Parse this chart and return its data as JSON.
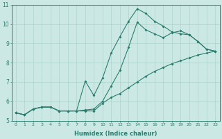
{
  "xlabel": "Humidex (Indice chaleur)",
  "ylabel": "",
  "xlim": [
    -0.5,
    23.5
  ],
  "ylim": [
    5,
    11
  ],
  "xticks": [
    0,
    1,
    2,
    3,
    4,
    5,
    6,
    7,
    8,
    9,
    10,
    11,
    12,
    13,
    14,
    15,
    16,
    17,
    18,
    19,
    20,
    21,
    22,
    23
  ],
  "yticks": [
    5,
    6,
    7,
    8,
    9,
    10,
    11
  ],
  "bg_color": "#cce8e4",
  "line_color": "#2a7d6e",
  "grid_color": "#aad4cc",
  "series": [
    [
      5.4,
      5.3,
      5.6,
      5.7,
      5.7,
      5.5,
      5.5,
      5.5,
      7.05,
      6.3,
      7.2,
      8.5,
      9.35,
      10.15,
      10.8,
      10.55,
      10.15,
      9.9,
      9.6,
      9.5,
      9.45,
      9.1,
      8.7,
      8.6
    ],
    [
      5.4,
      5.3,
      5.6,
      5.7,
      5.7,
      5.5,
      5.5,
      5.5,
      5.55,
      5.6,
      6.0,
      6.8,
      7.6,
      8.8,
      10.1,
      9.7,
      9.5,
      9.3,
      9.55,
      9.65,
      9.45,
      9.1,
      8.7,
      8.6
    ],
    [
      5.4,
      5.3,
      5.6,
      5.7,
      5.7,
      5.5,
      5.5,
      5.5,
      5.5,
      5.5,
      5.9,
      6.2,
      6.4,
      6.7,
      7.0,
      7.3,
      7.55,
      7.75,
      7.95,
      8.1,
      8.25,
      8.4,
      8.5,
      8.6
    ]
  ]
}
